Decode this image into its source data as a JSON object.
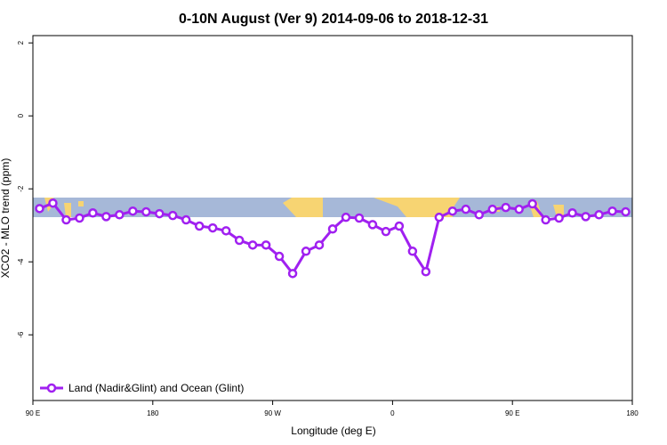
{
  "chart_data": {
    "type": "line",
    "title": "0-10N August (Ver 9)   2014-09-06 to 2018-12-31",
    "x_label": "Longitude (deg E)",
    "y_label": "XCO2 - MLO trend (ppm)",
    "x": [
      95,
      105,
      115,
      125,
      135,
      145,
      155,
      165,
      175,
      185,
      195,
      205,
      215,
      225,
      235,
      245,
      255,
      265,
      275,
      285,
      295,
      305,
      315,
      325,
      335,
      345,
      355,
      365,
      375,
      385,
      395,
      405,
      415,
      425,
      435,
      445,
      455,
      465,
      475,
      485,
      495,
      505,
      515,
      525,
      535
    ],
    "series": [
      {
        "name": "Land (Nadir&Glint) and Ocean (Glint)",
        "color": "#a020f0",
        "values": [
          -2.54,
          -2.39,
          -2.85,
          -2.8,
          -2.66,
          -2.76,
          -2.71,
          -2.61,
          -2.63,
          -2.68,
          -2.73,
          -2.85,
          -3.02,
          -3.07,
          -3.15,
          -3.41,
          -3.54,
          -3.54,
          -3.85,
          -4.32,
          -3.71,
          -3.54,
          -3.1,
          -2.78,
          -2.8,
          -2.98,
          -3.17,
          -3.02,
          -3.71,
          -4.27,
          -2.78,
          -2.61,
          -2.56,
          -2.71,
          -2.56,
          -2.51,
          -2.56,
          -2.41,
          -2.85,
          -2.8,
          -2.66,
          -2.76,
          -2.71,
          -2.61,
          -2.63
        ]
      }
    ],
    "xlim": [
      90,
      540
    ],
    "xticks": [
      {
        "value": 90,
        "label": "90 E"
      },
      {
        "value": 180,
        "label": "180"
      },
      {
        "value": 270,
        "label": "90 W"
      },
      {
        "value": 360,
        "label": "0"
      },
      {
        "value": 450,
        "label": "90 E"
      },
      {
        "value": 540,
        "label": "180"
      }
    ],
    "ylim": [
      -7.8,
      2.2
    ],
    "yticks": [
      2,
      0,
      -2,
      -4,
      -6
    ],
    "legend": "bottom-left"
  }
}
